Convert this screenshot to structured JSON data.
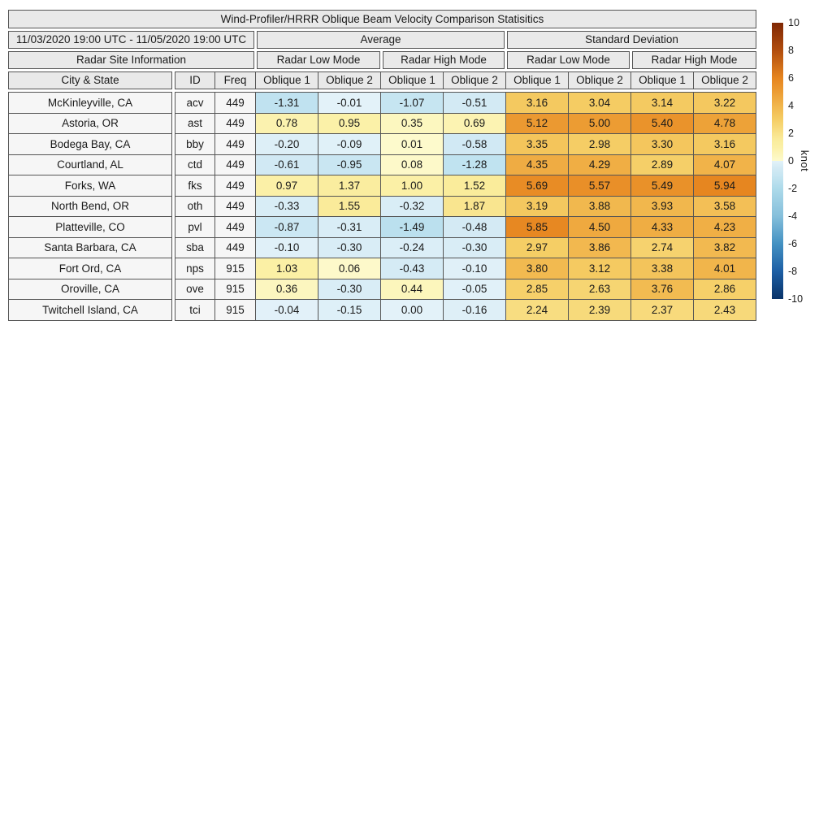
{
  "chart_data": {
    "type": "table",
    "title": "Wind-Profiler/HRRR Oblique Beam Velocity Comparison Statisitics",
    "period": "11/03/2020 19:00 UTC - 11/05/2020 19:00 UTC",
    "group_headers": {
      "average": "Average",
      "standard_deviation": "Standard Deviation"
    },
    "section_headers": {
      "site_info": "Radar Site Information",
      "low_mode": "Radar Low Mode",
      "high_mode": "Radar High Mode"
    },
    "column_headers": {
      "city": "City & State",
      "id": "ID",
      "freq": "Freq",
      "oblique1": "Oblique 1",
      "oblique2": "Oblique 2"
    },
    "value_column_order": [
      "Average Low Oblique 1",
      "Average Low Oblique 2",
      "Average High Oblique 1",
      "Average High Oblique 2",
      "StdDev Low Oblique 1",
      "StdDev Low Oblique 2",
      "StdDev High Oblique 1",
      "StdDev High Oblique 2"
    ],
    "rows": [
      {
        "city": "McKinleyville, CA",
        "id": "acv",
        "freq": "449",
        "values": [
          "-1.31",
          "-0.01",
          "-1.07",
          "-0.51",
          "3.16",
          "3.04",
          "3.14",
          "3.22"
        ]
      },
      {
        "city": "Astoria, OR",
        "id": "ast",
        "freq": "449",
        "values": [
          "0.78",
          "0.95",
          "0.35",
          "0.69",
          "5.12",
          "5.00",
          "5.40",
          "4.78"
        ]
      },
      {
        "city": "Bodega Bay, CA",
        "id": "bby",
        "freq": "449",
        "values": [
          "-0.20",
          "-0.09",
          "0.01",
          "-0.58",
          "3.35",
          "2.98",
          "3.30",
          "3.16"
        ]
      },
      {
        "city": "Courtland, AL",
        "id": "ctd",
        "freq": "449",
        "values": [
          "-0.61",
          "-0.95",
          "0.08",
          "-1.28",
          "4.35",
          "4.29",
          "2.89",
          "4.07"
        ]
      },
      {
        "city": "Forks, WA",
        "id": "fks",
        "freq": "449",
        "values": [
          "0.97",
          "1.37",
          "1.00",
          "1.52",
          "5.69",
          "5.57",
          "5.49",
          "5.94"
        ]
      },
      {
        "city": "North Bend, OR",
        "id": "oth",
        "freq": "449",
        "values": [
          "-0.33",
          "1.55",
          "-0.32",
          "1.87",
          "3.19",
          "3.88",
          "3.93",
          "3.58"
        ]
      },
      {
        "city": "Platteville, CO",
        "id": "pvl",
        "freq": "449",
        "values": [
          "-0.87",
          "-0.31",
          "-1.49",
          "-0.48",
          "5.85",
          "4.50",
          "4.33",
          "4.23"
        ]
      },
      {
        "city": "Santa Barbara, CA",
        "id": "sba",
        "freq": "449",
        "values": [
          "-0.10",
          "-0.30",
          "-0.24",
          "-0.30",
          "2.97",
          "3.86",
          "2.74",
          "3.82"
        ]
      },
      {
        "city": "Fort Ord, CA",
        "id": "nps",
        "freq": "915",
        "values": [
          "1.03",
          "0.06",
          "-0.43",
          "-0.10",
          "3.80",
          "3.12",
          "3.38",
          "4.01"
        ]
      },
      {
        "city": "Oroville, CA",
        "id": "ove",
        "freq": "915",
        "values": [
          "0.36",
          "-0.30",
          "0.44",
          "-0.05",
          "2.85",
          "2.63",
          "3.76",
          "2.86"
        ]
      },
      {
        "city": "Twitchell Island, CA",
        "id": "tci",
        "freq": "915",
        "values": [
          "-0.04",
          "-0.15",
          "0.00",
          "-0.16",
          "2.24",
          "2.39",
          "2.37",
          "2.43"
        ]
      }
    ],
    "colorbar": {
      "label": "knot",
      "min": -10,
      "max": 10,
      "ticks": [
        "10",
        "8",
        "6",
        "4",
        "2",
        "0",
        "-2",
        "-4",
        "-6",
        "-8",
        "-10"
      ]
    }
  },
  "colors": {
    "border": "#555555",
    "header_bg": "#e9e9e9",
    "row_bg": "#f6f6f6",
    "text": "#1a1a1a",
    "neg_stops": [
      [
        -10,
        "#093369"
      ],
      [
        -8,
        "#1d5fa5"
      ],
      [
        -6,
        "#4391c2"
      ],
      [
        -4,
        "#85bfdb"
      ],
      [
        -2,
        "#addaea"
      ],
      [
        -1,
        "#c8e6f2"
      ],
      [
        -0.5,
        "#d3eaf4"
      ],
      [
        0,
        "#e3f2f9"
      ]
    ],
    "pos_stops": [
      [
        0.005,
        "#fdfacc"
      ],
      [
        0.5,
        "#fcf5ba"
      ],
      [
        1,
        "#fbf0a6"
      ],
      [
        1.5,
        "#faec9c"
      ],
      [
        2,
        "#f9e28a"
      ],
      [
        3,
        "#f5cd64"
      ],
      [
        4,
        "#f1b54b"
      ],
      [
        5,
        "#ec9c33"
      ],
      [
        6,
        "#e6851f"
      ],
      [
        8,
        "#b14d0e"
      ],
      [
        10,
        "#7f2704"
      ]
    ]
  }
}
